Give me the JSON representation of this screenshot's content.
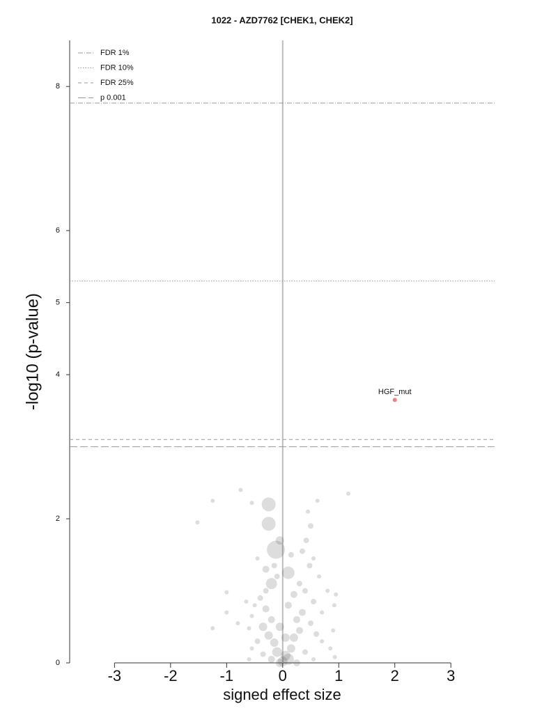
{
  "chart_data": {
    "type": "scatter",
    "title": "1022 - AZD7762 [CHEK1, CHEK2]",
    "xlabel": "signed effect size",
    "ylabel": "-log10 (p-value)",
    "xlim": [
      -3.8,
      3.78
    ],
    "ylim": [
      0,
      8.64
    ],
    "xticks": [
      -3,
      -2,
      -1,
      0,
      1,
      2,
      3
    ],
    "yticks": [
      0,
      2,
      4,
      5,
      6,
      8
    ],
    "vline": 0,
    "thresholds": [
      {
        "name": "FDR 1%",
        "value": 7.77,
        "dash": "7,2,1,2"
      },
      {
        "name": "FDR 10%",
        "value": 5.3,
        "dash": "1.5,2"
      },
      {
        "name": "FDR 25%",
        "value": 3.1,
        "dash": "5,4"
      },
      {
        "name": "p 0.001",
        "value": 3.0,
        "dash": "11,4"
      }
    ],
    "points": {
      "color": "#555555",
      "x": [
        -0.75,
        -1.25,
        -1.52,
        -0.55,
        1.17,
        0.62,
        0.45,
        0.5,
        0.42,
        0.35,
        0.55,
        0.48,
        0.65,
        0.3,
        0.4,
        0.2,
        0.55,
        0.95,
        -1.0,
        -0.65,
        -0.5,
        -0.3,
        -0.2,
        -0.35,
        -0.25,
        -0.15,
        -0.1,
        0.05,
        0.1,
        0.15,
        0.2,
        0.3,
        0.25,
        0.35,
        0.5,
        0.6,
        0.7,
        0.85,
        0.92,
        0.9,
        0.93,
        -0.45,
        -0.55,
        -0.6,
        -0.8,
        -1.25,
        -1.0,
        -0.55,
        -0.4,
        -0.3,
        -0.1,
        -0.15,
        -0.3,
        -0.45,
        -0.05,
        0.0,
        -0.2,
        0.25,
        0.4,
        -0.35,
        -0.6,
        0.55,
        0.7,
        0.8,
        0.15,
        0.1,
        -0.05,
        0.05,
        -0.25,
        -0.25,
        -0.12,
        0.1,
        -0.2,
        -0.05
      ],
      "y": [
        2.4,
        2.25,
        1.95,
        2.22,
        2.35,
        2.25,
        2.1,
        1.9,
        1.7,
        1.55,
        1.45,
        1.35,
        1.2,
        1.1,
        1.0,
        0.95,
        0.85,
        0.95,
        0.98,
        0.85,
        0.8,
        0.75,
        0.6,
        0.5,
        0.38,
        0.28,
        0.15,
        0.1,
        0.05,
        0.2,
        0.35,
        0.45,
        0.6,
        0.7,
        0.55,
        0.4,
        0.3,
        0.2,
        0.8,
        0.45,
        0.08,
        0.3,
        0.2,
        0.48,
        0.55,
        0.48,
        0.7,
        0.65,
        0.9,
        1.0,
        1.2,
        1.35,
        1.3,
        1.45,
        0.0,
        0.02,
        0.05,
        0.0,
        0.15,
        0.12,
        0.05,
        0.05,
        0.7,
        1.0,
        1.5,
        0.8,
        0.5,
        0.35,
        2.2,
        1.93,
        1.57,
        1.25,
        1.1,
        1.7
      ],
      "sizes": [
        3,
        3,
        3,
        3,
        3,
        3,
        3,
        4,
        4,
        4,
        3,
        4,
        3,
        4,
        4,
        5,
        4,
        3,
        3,
        3,
        3,
        5,
        5,
        6,
        6,
        6,
        7,
        7,
        8,
        6,
        6,
        5,
        5,
        5,
        4,
        4,
        3,
        3,
        3,
        3,
        3,
        4,
        3,
        3,
        3,
        3,
        3,
        3,
        4,
        4,
        4,
        4,
        5,
        3,
        6,
        7,
        5,
        5,
        4,
        4,
        3,
        3,
        3,
        3,
        4,
        5,
        6,
        6,
        10,
        10,
        13,
        9,
        8,
        6
      ]
    },
    "highlight": {
      "label": "HGF_mut",
      "x": 2.0,
      "y": 3.65,
      "color": "#f08080"
    }
  }
}
